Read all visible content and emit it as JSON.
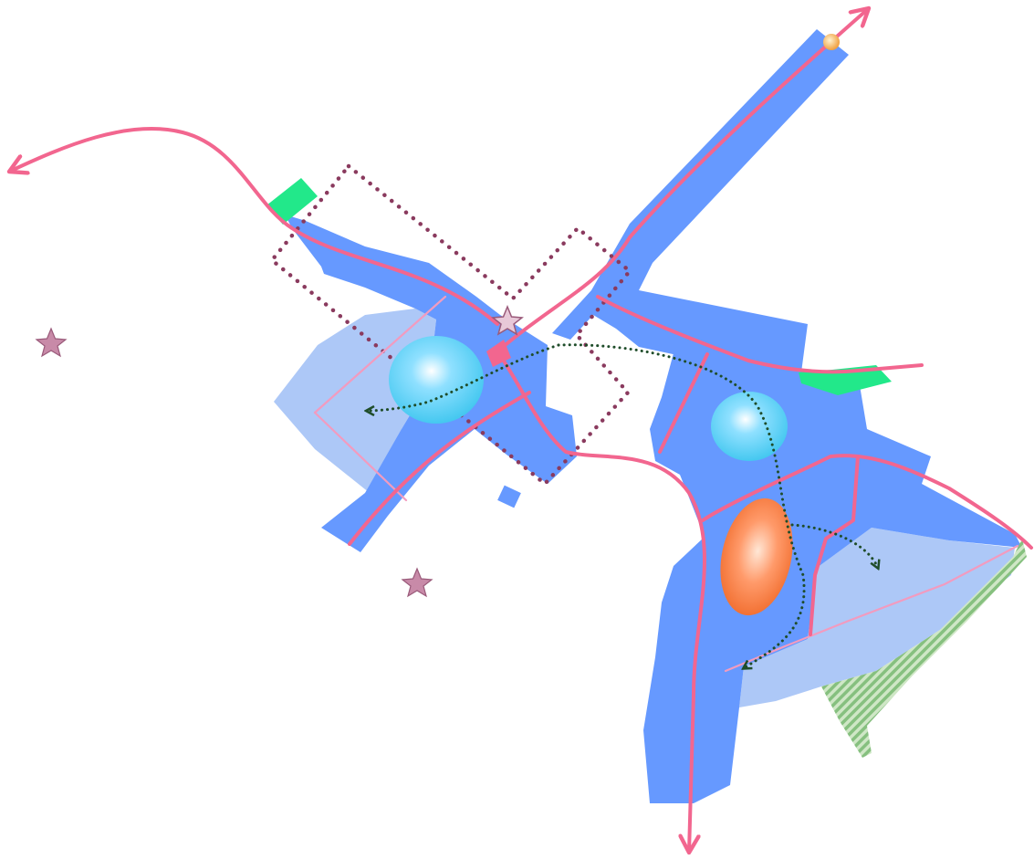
{
  "map": {
    "type": "schematic-planning-diagram",
    "labels": [],
    "colors": {
      "background": "#ffffff",
      "core_zone": "#6699ff",
      "expansion_zone": "#adc8f7",
      "main_road": "#f2668f",
      "minor_road": "#f29bbf",
      "node_circle": "#45c8f0",
      "center_node": "#f06a2a",
      "green_block": "#22e88a",
      "hatched_green": "#86c07f",
      "dotted_boundary": "#8a3a5e",
      "dotted_flow": "#1f4d2a",
      "star": "#c88aa8",
      "endpoint_marker": "#f0a040"
    },
    "features": {
      "outbound_road_arrows": 3,
      "blue_node_circles": 2,
      "orange_center_nodes": 1,
      "green_blocks": 3,
      "star_markers": 3,
      "dotted_flow_arrows": 3
    }
  }
}
